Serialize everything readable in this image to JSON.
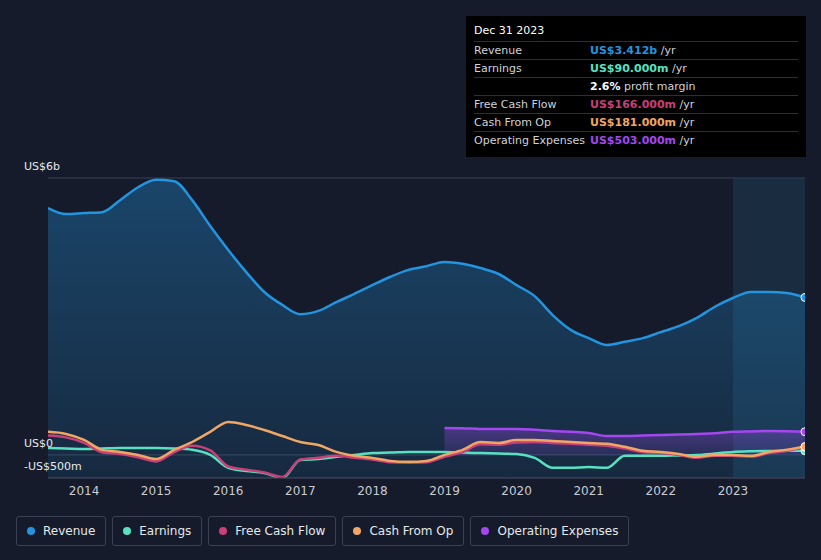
{
  "chart_data": {
    "type": "line",
    "x": [
      2013.5,
      2013.75,
      2014,
      2014.25,
      2014.5,
      2014.75,
      2015,
      2015.25,
      2015.5,
      2015.75,
      2016,
      2016.25,
      2016.5,
      2016.75,
      2017,
      2017.25,
      2017.5,
      2017.75,
      2018,
      2018.25,
      2018.5,
      2018.75,
      2019,
      2019.25,
      2019.5,
      2019.75,
      2020,
      2020.25,
      2020.5,
      2020.75,
      2021,
      2021.25,
      2021.5,
      2021.75,
      2022,
      2022.25,
      2022.5,
      2022.75,
      2023,
      2023.25,
      2023.5,
      2023.75,
      2024
    ],
    "xlim": [
      2013.5,
      2024
    ],
    "xticks": [
      2014,
      2015,
      2016,
      2017,
      2018,
      2019,
      2020,
      2021,
      2022,
      2023
    ],
    "ylim": [
      -500,
      6000
    ],
    "yticks": [
      {
        "value": -500,
        "label": "-US$500m"
      },
      {
        "value": 0,
        "label": "US$0"
      },
      {
        "value": 6000,
        "label": "US$6b"
      }
    ],
    "grid": true,
    "legend": "bottom",
    "series": [
      {
        "name": "Revenue",
        "color": "#2394df",
        "type": "area",
        "values": [
          5350,
          5220,
          5240,
          5260,
          5520,
          5800,
          5960,
          5930,
          5520,
          4960,
          4440,
          3960,
          3530,
          3250,
          3050,
          3120,
          3310,
          3490,
          3680,
          3860,
          4010,
          4090,
          4180,
          4140,
          4050,
          3920,
          3680,
          3440,
          3030,
          2710,
          2530,
          2380,
          2450,
          2530,
          2660,
          2790,
          2970,
          3210,
          3400,
          3530,
          3530,
          3510,
          3412
        ]
      },
      {
        "name": "Earnings",
        "color": "#58e1c1",
        "type": "line",
        "values": [
          150,
          140,
          130,
          140,
          150,
          150,
          150,
          140,
          110,
          0,
          -280,
          -350,
          -390,
          -500,
          -110,
          -90,
          -40,
          0,
          40,
          50,
          65,
          65,
          65,
          50,
          40,
          30,
          20,
          -65,
          -280,
          -280,
          -260,
          -280,
          -20,
          -20,
          -20,
          -10,
          0,
          30,
          65,
          80,
          87,
          88,
          90
        ]
      },
      {
        "name": "Free Cash Flow",
        "color": "#c93f78",
        "type": "line",
        "values": [
          420,
          380,
          260,
          60,
          20,
          -50,
          -140,
          60,
          200,
          100,
          -250,
          -320,
          -380,
          -480,
          -100,
          -60,
          -20,
          -60,
          -100,
          -160,
          -170,
          -160,
          -40,
          60,
          230,
          220,
          270,
          280,
          260,
          240,
          220,
          200,
          140,
          60,
          40,
          0,
          -60,
          -20,
          -20,
          -40,
          40,
          90,
          166
        ]
      },
      {
        "name": "Cash From Op",
        "color": "#f0a664",
        "type": "line",
        "values": [
          500,
          455,
          325,
          110,
          65,
          0,
          -90,
          110,
          280,
          500,
          715,
          650,
          540,
          410,
          280,
          215,
          65,
          -20,
          -65,
          -130,
          -150,
          -130,
          0,
          110,
          280,
          260,
          325,
          325,
          300,
          280,
          260,
          240,
          175,
          90,
          65,
          20,
          -40,
          0,
          0,
          -20,
          65,
          110,
          181
        ]
      },
      {
        "name": "Operating Expenses",
        "color": "#a447f0",
        "type": "area",
        "values": [
          null,
          null,
          null,
          null,
          null,
          null,
          null,
          null,
          null,
          null,
          null,
          null,
          null,
          null,
          null,
          null,
          null,
          null,
          null,
          null,
          null,
          null,
          585,
          580,
          560,
          560,
          560,
          545,
          520,
          500,
          475,
          410,
          410,
          420,
          430,
          440,
          455,
          470,
          500,
          510,
          520,
          515,
          503
        ]
      }
    ],
    "info_box": {
      "title": "Dec 31 2023",
      "rows": [
        {
          "label": "Revenue",
          "value": "US$3.412b",
          "unit": "/yr"
        },
        {
          "label": "Earnings",
          "value": "US$90.000m",
          "unit": "/yr"
        },
        {
          "value": "2.6%",
          "unit": "profit margin"
        },
        {
          "label": "Free Cash Flow",
          "value": "US$166.000m",
          "unit": "/yr"
        },
        {
          "label": "Cash From Op",
          "value": "US$181.000m",
          "unit": "/yr"
        },
        {
          "label": "Operating Expenses",
          "value": "US$503.000m",
          "unit": "/yr"
        }
      ]
    }
  }
}
